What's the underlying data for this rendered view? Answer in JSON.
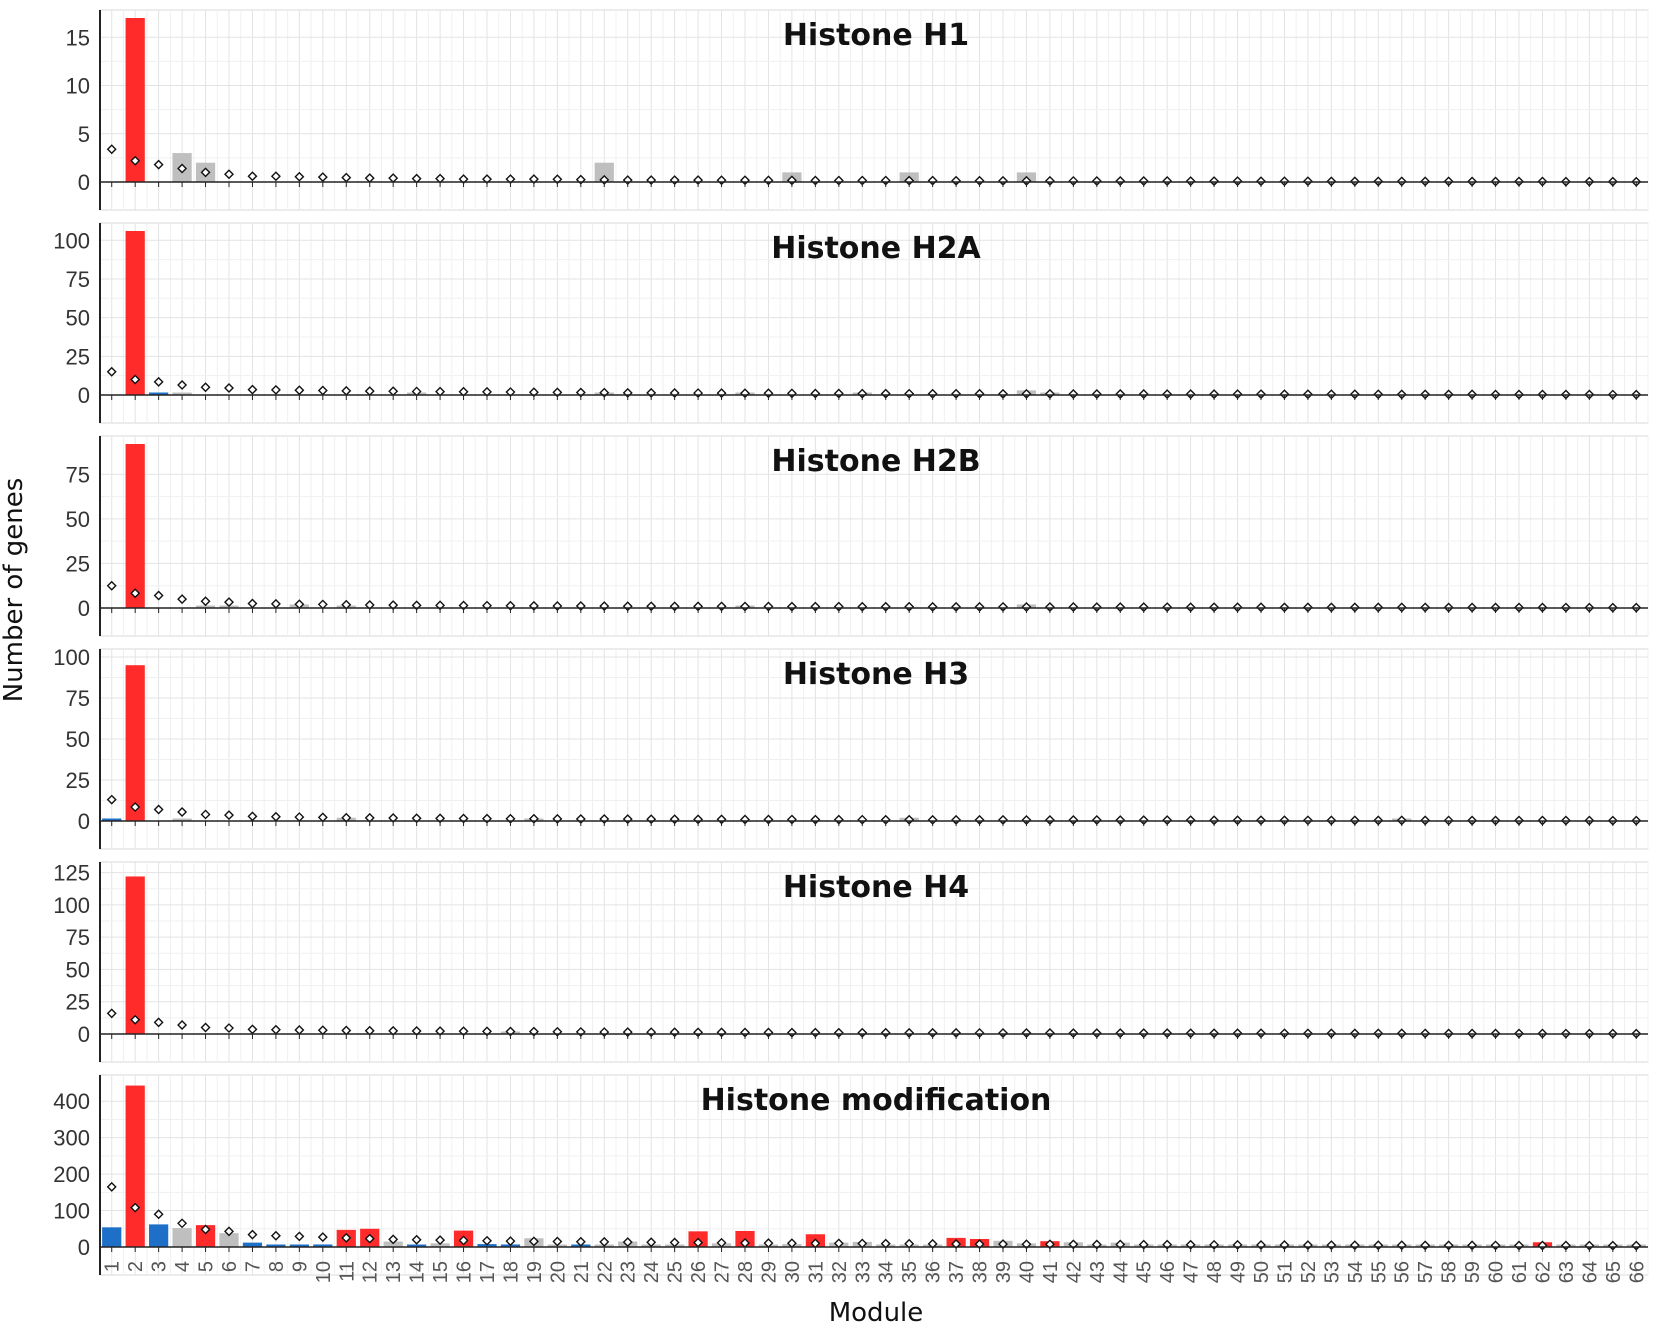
{
  "chart_data": {
    "type": "bar",
    "ylabel": "Number of genes",
    "xlabel": "Module",
    "categories": [
      "1",
      "2",
      "3",
      "4",
      "5",
      "6",
      "7",
      "8",
      "9",
      "10",
      "11",
      "12",
      "13",
      "14",
      "15",
      "16",
      "17",
      "18",
      "19",
      "20",
      "21",
      "22",
      "23",
      "24",
      "25",
      "26",
      "27",
      "28",
      "29",
      "30",
      "31",
      "32",
      "33",
      "34",
      "35",
      "36",
      "37",
      "38",
      "39",
      "40",
      "41",
      "42",
      "43",
      "44",
      "45",
      "46",
      "47",
      "48",
      "49",
      "50",
      "51",
      "52",
      "53",
      "54",
      "55",
      "56",
      "57",
      "58",
      "59",
      "60",
      "61",
      "62",
      "63",
      "64",
      "65",
      "66"
    ],
    "bar_colors": {
      "enriched": "#ff2b2b",
      "depleted": "#1e6fc8",
      "not_significant": "#bfbfbf"
    },
    "marker": "diamond",
    "panels": [
      {
        "title": "Histone H1",
        "ylim": [
          0,
          17
        ],
        "yticks": [
          0,
          5,
          10,
          15
        ],
        "bars": {
          "2": 17,
          "4": 3,
          "5": 2,
          "22": 2,
          "30": 1,
          "35": 1,
          "40": 1
        },
        "bar_status": {
          "2": "enriched",
          "4": "not_significant",
          "5": "not_significant",
          "22": "not_significant",
          "30": "not_significant",
          "35": "not_significant",
          "40": "not_significant"
        },
        "expected": [
          3.4,
          2.2,
          1.8,
          1.4,
          1.0,
          0.8,
          0.6,
          0.6,
          0.55,
          0.5,
          0.45,
          0.4,
          0.4,
          0.35,
          0.35,
          0.3,
          0.3,
          0.3,
          0.3,
          0.28,
          0.25,
          0.22,
          0.2,
          0.2,
          0.2,
          0.2,
          0.18,
          0.18,
          0.17,
          0.17,
          0.16,
          0.15,
          0.15,
          0.15,
          0.14,
          0.14,
          0.13,
          0.13,
          0.12,
          0.12,
          0.12,
          0.11,
          0.1,
          0.1,
          0.1,
          0.1,
          0.09,
          0.09,
          0.09,
          0.08,
          0.08,
          0.08,
          0.07,
          0.07,
          0.07,
          0.06,
          0.06,
          0.06,
          0.05,
          0.05,
          0.05,
          0.05,
          0.04,
          0.04,
          0.04,
          0.03
        ]
      },
      {
        "title": "Histone H2A",
        "ylim": [
          0,
          106
        ],
        "yticks": [
          0,
          25,
          50,
          75,
          100
        ],
        "bars": {
          "2": 106,
          "3": 1,
          "4": 1,
          "14": 1,
          "22": 1,
          "28": 1,
          "33": 1,
          "40": 3,
          "41": 1
        },
        "bar_status": {
          "2": "enriched",
          "3": "depleted",
          "4": "not_significant",
          "14": "not_significant",
          "22": "not_significant",
          "28": "not_significant",
          "33": "not_significant",
          "40": "not_significant",
          "41": "not_significant"
        },
        "expected": [
          15,
          10,
          8.5,
          6.5,
          5,
          4.5,
          3.5,
          3.3,
          3.1,
          2.9,
          2.7,
          2.5,
          2.4,
          2.3,
          2.2,
          2.1,
          2.0,
          1.9,
          1.8,
          1.7,
          1.6,
          1.5,
          1.4,
          1.35,
          1.3,
          1.25,
          1.2,
          1.15,
          1.1,
          1.05,
          1.0,
          0.95,
          0.9,
          0.88,
          0.85,
          0.82,
          0.8,
          0.78,
          0.75,
          0.72,
          0.7,
          0.68,
          0.66,
          0.64,
          0.62,
          0.6,
          0.58,
          0.56,
          0.55,
          0.53,
          0.52,
          0.5,
          0.48,
          0.46,
          0.45,
          0.43,
          0.42,
          0.4,
          0.38,
          0.36,
          0.35,
          0.33,
          0.32,
          0.3,
          0.28,
          0.26
        ]
      },
      {
        "title": "Histone H2B",
        "ylim": [
          0,
          92
        ],
        "yticks": [
          0,
          25,
          50,
          75
        ],
        "bars": {
          "2": 92,
          "5": 1,
          "6": 1,
          "9": 2,
          "11": 1,
          "28": 1,
          "40": 2
        },
        "bar_status": {
          "2": "enriched",
          "5": "not_significant",
          "6": "not_significant",
          "9": "not_significant",
          "11": "not_significant",
          "28": "not_significant",
          "40": "not_significant"
        },
        "expected": [
          12.5,
          8.3,
          7,
          5,
          3.8,
          3.3,
          2.5,
          2.3,
          2.1,
          2.0,
          1.8,
          1.7,
          1.6,
          1.5,
          1.45,
          1.4,
          1.3,
          1.25,
          1.2,
          1.15,
          1.1,
          1.05,
          1.0,
          0.95,
          0.92,
          0.9,
          0.88,
          0.85,
          0.82,
          0.8,
          0.77,
          0.75,
          0.72,
          0.7,
          0.68,
          0.66,
          0.64,
          0.62,
          0.6,
          0.58,
          0.56,
          0.54,
          0.52,
          0.5,
          0.48,
          0.46,
          0.45,
          0.44,
          0.42,
          0.4,
          0.38,
          0.37,
          0.36,
          0.35,
          0.34,
          0.33,
          0.32,
          0.3,
          0.29,
          0.28,
          0.27,
          0.26,
          0.25,
          0.24,
          0.23,
          0.22
        ]
      },
      {
        "title": "Histone H3",
        "ylim": [
          0,
          100
        ],
        "yticks": [
          0,
          25,
          50,
          75,
          100
        ],
        "bars": {
          "1": 1,
          "2": 95,
          "4": 1,
          "11": 2,
          "19": 1,
          "35": 2,
          "56": 1
        },
        "bar_status": {
          "1": "depleted",
          "2": "enriched",
          "4": "not_significant",
          "11": "not_significant",
          "19": "not_significant",
          "35": "not_significant",
          "56": "not_significant"
        },
        "expected": [
          13,
          8.5,
          7,
          5.5,
          4,
          3.6,
          2.8,
          2.6,
          2.4,
          2.2,
          2.0,
          1.9,
          1.8,
          1.7,
          1.6,
          1.5,
          1.45,
          1.4,
          1.35,
          1.3,
          1.25,
          1.2,
          1.15,
          1.1,
          1.05,
          1.0,
          0.97,
          0.94,
          0.9,
          0.88,
          0.85,
          0.82,
          0.8,
          0.78,
          0.75,
          0.72,
          0.7,
          0.68,
          0.66,
          0.64,
          0.62,
          0.6,
          0.58,
          0.56,
          0.54,
          0.52,
          0.5,
          0.48,
          0.46,
          0.45,
          0.44,
          0.42,
          0.4,
          0.38,
          0.37,
          0.36,
          0.35,
          0.34,
          0.33,
          0.32,
          0.3,
          0.29,
          0.28,
          0.27,
          0.26,
          0.25
        ]
      },
      {
        "title": "Histone H4",
        "ylim": [
          0,
          127
        ],
        "yticks": [
          0,
          25,
          50,
          75,
          100,
          125
        ],
        "bars": {
          "2": 122,
          "18": 1
        },
        "bar_status": {
          "2": "enriched",
          "18": "not_significant"
        },
        "expected": [
          16,
          11,
          9,
          7,
          5,
          4.6,
          3.6,
          3.3,
          3.1,
          2.9,
          2.7,
          2.5,
          2.4,
          2.3,
          2.2,
          2.1,
          2.0,
          1.9,
          1.8,
          1.7,
          1.6,
          1.5,
          1.45,
          1.4,
          1.35,
          1.3,
          1.25,
          1.2,
          1.15,
          1.1,
          1.05,
          1.0,
          0.97,
          0.94,
          0.9,
          0.88,
          0.85,
          0.82,
          0.8,
          0.78,
          0.75,
          0.72,
          0.7,
          0.68,
          0.66,
          0.64,
          0.62,
          0.6,
          0.58,
          0.56,
          0.54,
          0.52,
          0.5,
          0.48,
          0.46,
          0.45,
          0.44,
          0.42,
          0.4,
          0.38,
          0.36,
          0.35,
          0.34,
          0.33,
          0.32,
          0.3
        ]
      },
      {
        "title": "Histone modification",
        "ylim": [
          0,
          450
        ],
        "yticks": [
          0,
          100,
          200,
          300,
          400
        ],
        "bars": {
          "1": 54,
          "2": 443,
          "3": 62,
          "4": 52,
          "5": 60,
          "6": 38,
          "7": 12,
          "8": 5,
          "9": 6,
          "10": 7,
          "11": 47,
          "12": 50,
          "13": 15,
          "14": 6,
          "15": 10,
          "16": 45,
          "17": 8,
          "18": 7,
          "19": 24,
          "20": 6,
          "21": 5,
          "22": 3,
          "23": 15,
          "24": 5,
          "25": 5,
          "26": 43,
          "27": 10,
          "28": 44,
          "29": 6,
          "30": 8,
          "31": 35,
          "32": 12,
          "33": 14,
          "34": 4,
          "35": 3,
          "36": 3,
          "37": 25,
          "38": 22,
          "39": 17,
          "40": 10,
          "41": 16,
          "42": 13,
          "43": 4,
          "44": 12,
          "45": 3,
          "46": 2,
          "47": 3,
          "48": 2,
          "49": 2,
          "50": 4,
          "51": 2,
          "52": 2,
          "53": 2,
          "54": 6,
          "55": 2,
          "56": 3,
          "57": 3,
          "58": 4,
          "59": 2,
          "60": 2,
          "61": 2,
          "62": 13,
          "63": 2,
          "64": 2,
          "65": 1,
          "66": 1
        },
        "bar_status": {
          "1": "depleted",
          "2": "enriched",
          "3": "depleted",
          "4": "not_significant",
          "5": "enriched",
          "6": "not_significant",
          "7": "depleted",
          "8": "depleted",
          "9": "depleted",
          "10": "depleted",
          "11": "enriched",
          "12": "enriched",
          "13": "not_significant",
          "14": "depleted",
          "15": "not_significant",
          "16": "enriched",
          "17": "depleted",
          "18": "depleted",
          "19": "not_significant",
          "20": "not_significant",
          "21": "depleted",
          "22": "not_significant",
          "23": "not_significant",
          "24": "not_significant",
          "25": "not_significant",
          "26": "enriched",
          "27": "not_significant",
          "28": "enriched",
          "29": "not_significant",
          "30": "not_significant",
          "31": "enriched",
          "32": "not_significant",
          "33": "not_significant",
          "34": "not_significant",
          "35": "not_significant",
          "36": "not_significant",
          "37": "enriched",
          "38": "enriched",
          "39": "not_significant",
          "40": "not_significant",
          "41": "enriched",
          "42": "not_significant",
          "43": "not_significant",
          "44": "not_significant",
          "45": "not_significant",
          "46": "not_significant",
          "47": "not_significant",
          "48": "not_significant",
          "49": "not_significant",
          "50": "not_significant",
          "51": "not_significant",
          "52": "not_significant",
          "53": "not_significant",
          "54": "not_significant",
          "55": "not_significant",
          "56": "not_significant",
          "57": "not_significant",
          "58": "not_significant",
          "59": "not_significant",
          "60": "not_significant",
          "61": "not_significant",
          "62": "enriched",
          "63": "not_significant",
          "64": "not_significant",
          "65": "not_significant",
          "66": "not_significant"
        },
        "expected": [
          165,
          108,
          90,
          65,
          48,
          43,
          34,
          31,
          29,
          27,
          25,
          23,
          21,
          20,
          19,
          18,
          17,
          16,
          15.5,
          15,
          14.5,
          14,
          13.5,
          13,
          12.5,
          12,
          11.5,
          11,
          10.7,
          10.4,
          10.1,
          9.8,
          9.5,
          9.2,
          8.9,
          8.6,
          8.3,
          8.0,
          7.8,
          7.6,
          7.4,
          7.2,
          7.0,
          6.8,
          6.6,
          6.4,
          6.2,
          6.0,
          5.8,
          5.6,
          5.4,
          5.2,
          5.0,
          4.9,
          4.8,
          4.7,
          4.6,
          4.5,
          4.4,
          4.3,
          4.2,
          4.1,
          4.0,
          3.9,
          3.8,
          3.7
        ]
      }
    ]
  }
}
